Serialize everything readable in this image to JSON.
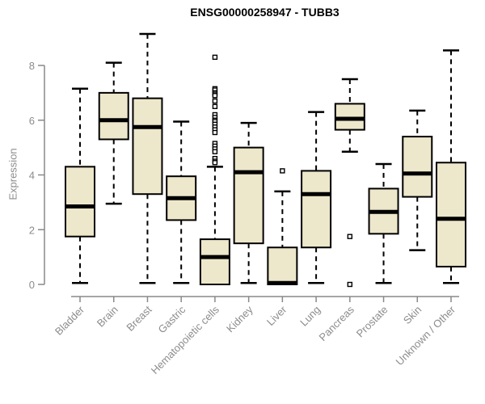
{
  "title": "ENSG00000258947 - TUBB3",
  "colors": {
    "background": "#FFFFFF",
    "box_fill": "#EDE7CB",
    "box_border": "#000000",
    "median_line": "#000000",
    "whisker": "#000000",
    "axis_line": "#898989",
    "axis_text": "#8C8C8C",
    "title_text": "#000000"
  },
  "chart_data": {
    "type": "boxplot",
    "title": "ENSG00000258947 - TUBB3",
    "xlabel": "",
    "ylabel": "Expression",
    "ylim": [
      0,
      8
    ],
    "yticks": [
      0,
      2,
      4,
      6,
      8
    ],
    "grid": false,
    "legend": null,
    "categories": [
      "Bladder",
      "Brain",
      "Breast",
      "Gastric",
      "Hematopoietic cells",
      "Kidney",
      "Liver",
      "Lung",
      "Pancreas",
      "Prostate",
      "Skin",
      "Unknown / Other"
    ],
    "series": [
      {
        "label": "Bladder",
        "whisker_low": 0.05,
        "q1": 1.75,
        "median": 2.85,
        "q3": 4.3,
        "whisker_high": 7.15,
        "outliers": []
      },
      {
        "label": "Brain",
        "whisker_low": 2.95,
        "q1": 5.3,
        "median": 6.0,
        "q3": 7.0,
        "whisker_high": 8.1,
        "outliers": []
      },
      {
        "label": "Breast",
        "whisker_low": 0.05,
        "q1": 3.3,
        "median": 5.75,
        "q3": 6.8,
        "whisker_high": 9.15,
        "outliers": []
      },
      {
        "label": "Gastric",
        "whisker_low": 0.05,
        "q1": 2.35,
        "median": 3.15,
        "q3": 3.95,
        "whisker_high": 5.95,
        "outliers": []
      },
      {
        "label": "Hematopoietic cells",
        "whisker_low": 0.0,
        "q1": 0.0,
        "median": 1.0,
        "q3": 1.65,
        "whisker_high": 4.3,
        "outliers": [
          8.3,
          7.15,
          7.1,
          7.0,
          6.95,
          6.9,
          6.7,
          6.5,
          6.2,
          6.1,
          6.0,
          5.95,
          5.85,
          5.75,
          5.65,
          5.55,
          5.15,
          5.05,
          4.95,
          4.85,
          4.6,
          4.5,
          4.45
        ]
      },
      {
        "label": "Kidney",
        "whisker_low": 0.05,
        "q1": 1.5,
        "median": 4.1,
        "q3": 5.0,
        "whisker_high": 5.9,
        "outliers": []
      },
      {
        "label": "Liver",
        "whisker_low": 0.0,
        "q1": 0.0,
        "median": 0.05,
        "q3": 1.35,
        "whisker_high": 3.4,
        "outliers": [
          4.15
        ]
      },
      {
        "label": "Lung",
        "whisker_low": 0.05,
        "q1": 1.35,
        "median": 3.3,
        "q3": 4.15,
        "whisker_high": 6.3,
        "outliers": []
      },
      {
        "label": "Pancreas",
        "whisker_low": 4.85,
        "q1": 5.65,
        "median": 6.05,
        "q3": 6.6,
        "whisker_high": 7.5,
        "outliers": [
          1.75,
          0.0
        ]
      },
      {
        "label": "Prostate",
        "whisker_low": 0.05,
        "q1": 1.85,
        "median": 2.65,
        "q3": 3.5,
        "whisker_high": 4.4,
        "outliers": []
      },
      {
        "label": "Skin",
        "whisker_low": 1.25,
        "q1": 3.2,
        "median": 4.05,
        "q3": 5.4,
        "whisker_high": 6.35,
        "outliers": []
      },
      {
        "label": "Unknown / Other",
        "whisker_low": 0.05,
        "q1": 0.65,
        "median": 2.4,
        "q3": 4.45,
        "whisker_high": 8.55,
        "outliers": []
      }
    ]
  }
}
